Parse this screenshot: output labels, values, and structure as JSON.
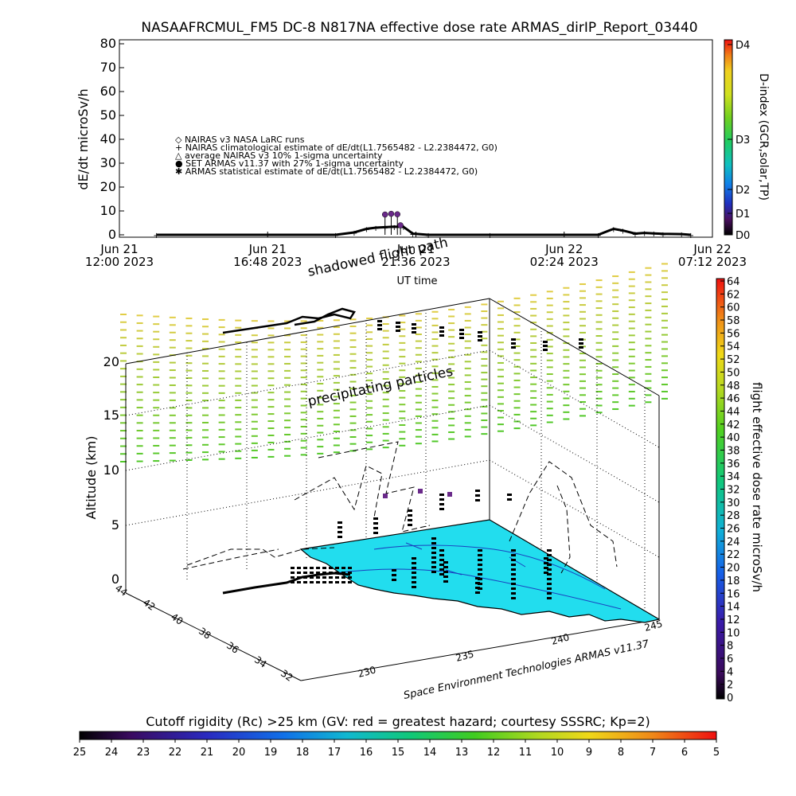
{
  "title": "NASAAFRCMUL_FM5 DC-8    N817NA effective dose rate ARMAS_dirIP_Report_03440",
  "top_chart": {
    "ylabel": "dE/dt microSv/h",
    "y_ticks": [
      "80",
      "70",
      "60",
      "50",
      "40",
      "30",
      "20",
      "10",
      "0"
    ],
    "x_ticks": [
      {
        "line1": "Jun 21",
        "line2": "12:00 2023"
      },
      {
        "line1": "Jun 21",
        "line2": "16:48 2023"
      },
      {
        "line1": "Jun 21",
        "line2": "21:36 2023"
      },
      {
        "line1": "Jun 22",
        "line2": "02:24 2023"
      },
      {
        "line1": "Jun 22",
        "line2": "07:12 2023"
      }
    ],
    "xlabel": "UT time",
    "legend": [
      "◇ NAIRAS v3 NASA LaRC runs",
      "+ NAIRAS climatological estimate of dE/dt(L1.7565482 - L2.2384472, G0)",
      "△ average NAIRAS v3 10% 1-sigma uncertainty",
      "● SET ARMAS v11.37 with 27% 1-sigma uncertainty",
      "✱ ARMAS statistical estimate of dE/dt(L1.7565482 - L2.2384472, G0)"
    ],
    "dindex_label": "D-index (GCR,solar,TP)",
    "dindex_ticks": [
      "D4",
      "D3",
      "D2",
      "D1",
      "D0"
    ]
  },
  "main_plot": {
    "ylabel": "Altitude (km)",
    "alt_ticks": [
      "20",
      "15",
      "10",
      "5",
      "0"
    ],
    "lat_ticks": [
      "44",
      "42",
      "40",
      "38",
      "36",
      "34",
      "32"
    ],
    "lon_ticks": [
      "230",
      "235",
      "240",
      "245"
    ],
    "annotation_shadowed": "shadowed flight path",
    "annotation_precip": "precipitating particles",
    "credit": "Space Environment Technologies ARMAS v11.37",
    "dose_colorbar_label": "flight effective dose rate microSv/h",
    "dose_colorbar_ticks": [
      "64",
      "62",
      "60",
      "58",
      "56",
      "54",
      "52",
      "50",
      "48",
      "46",
      "44",
      "42",
      "40",
      "38",
      "36",
      "34",
      "32",
      "30",
      "28",
      "26",
      "24",
      "22",
      "20",
      "18",
      "16",
      "14",
      "12",
      "10",
      "8",
      "6",
      "4",
      "2",
      "0"
    ]
  },
  "bottom_colorbar": {
    "title": "Cutoff rigidity (Rc) >25 km (GV: red = greatest hazard; courtesy SSSRC; Kp=2)",
    "ticks": [
      "25",
      "24",
      "23",
      "22",
      "21",
      "20",
      "19",
      "18",
      "17",
      "16",
      "15",
      "14",
      "13",
      "12",
      "11",
      "10",
      "9",
      "8",
      "7",
      "6",
      "5"
    ]
  },
  "chart_data": {
    "type": "line",
    "title": "NASAAFRCMUL_FM5 DC-8    N817NA effective dose rate ARMAS_dirIP_Report_03440",
    "xlabel": "UT time",
    "ylabel": "dE/dt microSv/h",
    "ylim": [
      0,
      80
    ],
    "x_tick_labels": [
      "Jun 21 12:00 2023",
      "Jun 21 16:48 2023",
      "Jun 21 21:36 2023",
      "Jun 22 02:24 2023",
      "Jun 22 07:12 2023"
    ],
    "x_range_hours": [
      0,
      19.2
    ],
    "series": [
      {
        "name": "NAIRAS climatological estimate of dE/dt(L1.7565482 - L2.2384472, G0)",
        "x_hours": [
          1.2,
          7.0,
          7.6,
          8.0,
          8.3,
          8.6,
          8.9,
          9.2,
          9.5,
          10.0,
          12.0,
          15.5,
          16.0,
          16.3,
          16.7,
          17.0,
          17.3,
          17.6,
          18.2,
          18.5
        ],
        "y": [
          0,
          0,
          1,
          2.5,
          3,
          3.2,
          3.4,
          3.3,
          0.5,
          0,
          0,
          0,
          2.5,
          1.8,
          0.5,
          0.8,
          0.6,
          0.4,
          0.3,
          0
        ]
      },
      {
        "name": "SET ARMAS v11.37 with 27% 1-sigma uncertainty",
        "x_hours": [
          8.6,
          8.8,
          9.0,
          9.1
        ],
        "y": [
          8.5,
          8.8,
          8.6,
          4
        ]
      }
    ],
    "dindex_colorbar": {
      "label": "D-index (GCR,solar,TP)",
      "ticks": [
        "D0",
        "D1",
        "D2",
        "D3",
        "D4"
      ]
    },
    "dose_colorbar": {
      "label": "flight effective dose rate microSv/h",
      "range": [
        0,
        64
      ]
    },
    "cutoff_colorbar": {
      "label": "Cutoff rigidity (Rc) >25 km (GV: red = greatest hazard; courtesy SSSRC; Kp=2)",
      "range": [
        25,
        5
      ]
    },
    "altitude_range_km": [
      0,
      20
    ],
    "latitude_ticks": [
      44,
      42,
      40,
      38,
      36,
      34,
      32
    ],
    "longitude_ticks": [
      230,
      235,
      240,
      245
    ],
    "colors": {
      "background": "#ffffff",
      "map_fill": "#22ddee",
      "precip_top": "#ddcc44",
      "precip_bottom": "#44cc22",
      "armas_points": "#6a2a8a"
    }
  }
}
